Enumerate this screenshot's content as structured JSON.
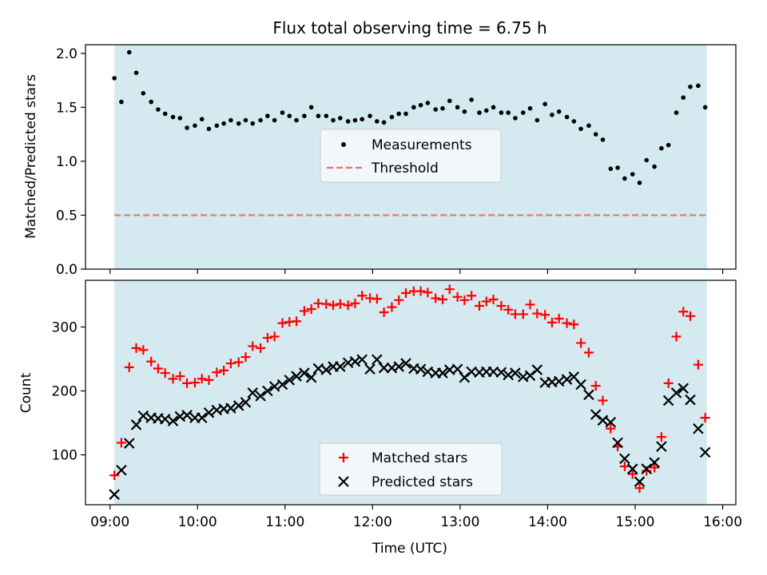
{
  "figure": {
    "title": "Flux total observing time = 6.75 h",
    "xlabel": "Time (UTC)",
    "x_ticks": [
      "09:00",
      "10:00",
      "11:00",
      "12:00",
      "13:00",
      "14:00",
      "15:00",
      "16:00"
    ],
    "shade_color": "#d4eaf0",
    "shade_range": [
      9.05,
      15.82
    ]
  },
  "chart_data": [
    {
      "type": "scatter",
      "title": "Flux total observing time = 6.75 h",
      "ylabel": "Matched/Predicted stars",
      "xlim": [
        8.72,
        16.15
      ],
      "ylim": [
        0.0,
        2.08
      ],
      "y_ticks": [
        "0.0",
        "0.5",
        "1.0",
        "1.5",
        "2.0"
      ],
      "legend_position": "center",
      "series": [
        {
          "name": "Measurements",
          "color": "#000000",
          "marker": "dot",
          "x": [
            9.05,
            9.13,
            9.22,
            9.3,
            9.38,
            9.47,
            9.55,
            9.63,
            9.72,
            9.8,
            9.88,
            9.97,
            10.05,
            10.13,
            10.22,
            10.3,
            10.38,
            10.47,
            10.55,
            10.63,
            10.72,
            10.8,
            10.88,
            10.97,
            11.05,
            11.13,
            11.22,
            11.3,
            11.38,
            11.47,
            11.55,
            11.63,
            11.72,
            11.8,
            11.88,
            11.97,
            12.05,
            12.13,
            12.22,
            12.3,
            12.38,
            12.47,
            12.55,
            12.63,
            12.72,
            12.8,
            12.88,
            12.97,
            13.05,
            13.13,
            13.22,
            13.3,
            13.38,
            13.47,
            13.55,
            13.63,
            13.72,
            13.8,
            13.88,
            13.97,
            14.05,
            14.13,
            14.22,
            14.3,
            14.38,
            14.47,
            14.55,
            14.63,
            14.72,
            14.8,
            14.88,
            14.97,
            15.05,
            15.13,
            15.22,
            15.3,
            15.38,
            15.47,
            15.55,
            15.63,
            15.72,
            15.8
          ],
          "y": [
            1.77,
            1.55,
            2.01,
            1.82,
            1.63,
            1.55,
            1.48,
            1.44,
            1.41,
            1.4,
            1.31,
            1.33,
            1.39,
            1.3,
            1.33,
            1.35,
            1.38,
            1.35,
            1.38,
            1.35,
            1.38,
            1.42,
            1.38,
            1.45,
            1.42,
            1.38,
            1.42,
            1.5,
            1.42,
            1.42,
            1.38,
            1.4,
            1.37,
            1.38,
            1.39,
            1.42,
            1.37,
            1.36,
            1.41,
            1.44,
            1.44,
            1.5,
            1.52,
            1.54,
            1.48,
            1.49,
            1.56,
            1.5,
            1.46,
            1.57,
            1.45,
            1.47,
            1.5,
            1.45,
            1.45,
            1.4,
            1.45,
            1.49,
            1.38,
            1.53,
            1.43,
            1.46,
            1.41,
            1.37,
            1.3,
            1.33,
            1.25,
            1.2,
            0.93,
            0.94,
            0.84,
            0.88,
            0.8,
            1.01,
            0.95,
            1.12,
            1.15,
            1.45,
            1.59,
            1.69,
            1.7,
            1.5
          ]
        },
        {
          "name": "Threshold",
          "color": "#f07070",
          "style": "dashed",
          "x": [
            9.05,
            15.82
          ],
          "y": [
            0.5,
            0.5
          ]
        }
      ]
    },
    {
      "type": "scatter",
      "ylabel": "Count",
      "xlim": [
        8.72,
        16.15
      ],
      "ylim": [
        22,
        373
      ],
      "y_ticks": [
        "100",
        "200",
        "300"
      ],
      "legend_position": "lower center",
      "series": [
        {
          "name": "Matched stars",
          "color": "#ff0000",
          "marker": "plus",
          "x": [
            9.05,
            9.13,
            9.22,
            9.3,
            9.38,
            9.47,
            9.55,
            9.63,
            9.72,
            9.8,
            9.88,
            9.97,
            10.05,
            10.13,
            10.22,
            10.3,
            10.38,
            10.47,
            10.55,
            10.63,
            10.72,
            10.8,
            10.88,
            10.97,
            11.05,
            11.13,
            11.22,
            11.3,
            11.38,
            11.47,
            11.55,
            11.63,
            11.72,
            11.8,
            11.88,
            11.97,
            12.05,
            12.13,
            12.22,
            12.3,
            12.38,
            12.47,
            12.55,
            12.63,
            12.72,
            12.8,
            12.88,
            12.97,
            13.05,
            13.13,
            13.22,
            13.3,
            13.38,
            13.47,
            13.55,
            13.63,
            13.72,
            13.8,
            13.88,
            13.97,
            14.05,
            14.13,
            14.22,
            14.3,
            14.38,
            14.47,
            14.55,
            14.63,
            14.72,
            14.8,
            14.88,
            14.97,
            15.05,
            15.13,
            15.22,
            15.3,
            15.38,
            15.47,
            15.55,
            15.63,
            15.72,
            15.8
          ],
          "y": [
            68,
            119,
            237,
            267,
            264,
            246,
            235,
            228,
            219,
            223,
            212,
            213,
            219,
            217,
            229,
            232,
            243,
            245,
            253,
            270,
            267,
            283,
            285,
            306,
            308,
            309,
            325,
            328,
            337,
            336,
            334,
            336,
            334,
            337,
            349,
            345,
            344,
            323,
            331,
            342,
            353,
            356,
            356,
            354,
            345,
            343,
            359,
            347,
            342,
            349,
            333,
            340,
            343,
            333,
            327,
            320,
            320,
            335,
            321,
            319,
            307,
            313,
            306,
            304,
            275,
            260,
            208,
            185,
            141,
            113,
            82,
            70,
            48,
            75,
            80,
            128,
            212,
            285,
            324,
            317,
            241,
            158
          ]
        },
        {
          "name": "Predicted stars",
          "color": "#000000",
          "marker": "x",
          "x": [
            9.05,
            9.13,
            9.22,
            9.3,
            9.38,
            9.47,
            9.55,
            9.63,
            9.72,
            9.8,
            9.88,
            9.97,
            10.05,
            10.13,
            10.22,
            10.3,
            10.38,
            10.47,
            10.55,
            10.63,
            10.72,
            10.8,
            10.88,
            10.97,
            11.05,
            11.13,
            11.22,
            11.3,
            11.38,
            11.47,
            11.55,
            11.63,
            11.72,
            11.8,
            11.88,
            11.97,
            12.05,
            12.13,
            12.22,
            12.3,
            12.38,
            12.47,
            12.55,
            12.63,
            12.72,
            12.8,
            12.88,
            12.97,
            13.05,
            13.13,
            13.22,
            13.3,
            13.38,
            13.47,
            13.55,
            13.63,
            13.72,
            13.8,
            13.88,
            13.97,
            14.05,
            14.13,
            14.22,
            14.3,
            14.38,
            14.47,
            14.55,
            14.63,
            14.72,
            14.8,
            14.88,
            14.97,
            15.05,
            15.13,
            15.22,
            15.3,
            15.38,
            15.47,
            15.55,
            15.63,
            15.72,
            15.8
          ],
          "y": [
            38,
            76,
            118,
            147,
            161,
            158,
            157,
            156,
            153,
            160,
            162,
            158,
            158,
            166,
            170,
            172,
            173,
            177,
            182,
            197,
            192,
            200,
            207,
            210,
            217,
            223,
            228,
            221,
            235,
            233,
            238,
            238,
            244,
            246,
            249,
            234,
            249,
            236,
            236,
            238,
            243,
            235,
            234,
            230,
            228,
            228,
            233,
            234,
            221,
            230,
            229,
            230,
            230,
            229,
            225,
            228,
            222,
            224,
            233,
            213,
            214,
            215,
            218,
            222,
            210,
            194,
            163,
            154,
            151,
            119,
            94,
            78,
            58,
            78,
            88,
            113,
            185,
            197,
            204,
            186,
            141,
            104
          ]
        }
      ]
    }
  ]
}
